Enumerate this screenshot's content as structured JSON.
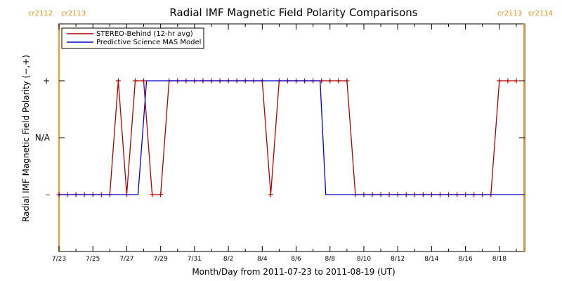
{
  "chart_data": {
    "type": "line",
    "title": "Radial IMF Magnetic Field Polarity Comparisons",
    "xlabel": "Month/Day from 2011-07-23 to 2011-08-19 (UT)",
    "ylabel": "Radial IMF Magnetic Field Polarity (−,+)",
    "x_tick_labels": [
      "7/23",
      "7/25",
      "7/27",
      "7/29",
      "7/31",
      "8/2",
      "8/4",
      "8/6",
      "8/8",
      "8/10",
      "8/12",
      "8/14",
      "8/16",
      "8/18"
    ],
    "y_tick_labels": [
      "–",
      "N/A",
      "+"
    ],
    "y_values_map": {
      "-": -1,
      "N/A": 0,
      "+": 1
    },
    "xlim": [
      "2011-07-23 00:00",
      "2011-08-19 12:00"
    ],
    "ylim": [
      -2,
      2
    ],
    "grid": false,
    "legend_position": "top-left",
    "carrington_labels_left": [
      "cr2112",
      "cr2113"
    ],
    "carrington_labels_right": [
      "cr2113",
      "cr2114"
    ],
    "carrington_boundary_times": [
      "2011-07-23 00:00",
      "2011-08-19 11:00"
    ],
    "series": [
      {
        "name": "STEREO-Behind (12-hr avg)",
        "color": "#b00000",
        "markers": "plus",
        "points": [
          [
            "2011-07-23 00:00",
            -1
          ],
          [
            "2011-07-23 12:00",
            -1
          ],
          [
            "2011-07-24 00:00",
            -1
          ],
          [
            "2011-07-24 12:00",
            -1
          ],
          [
            "2011-07-25 00:00",
            -1
          ],
          [
            "2011-07-25 12:00",
            -1
          ],
          [
            "2011-07-26 00:00",
            -1
          ],
          [
            "2011-07-26 12:00",
            1
          ],
          [
            "2011-07-27 00:00",
            -1
          ],
          [
            "2011-07-27 12:00",
            1
          ],
          [
            "2011-07-28 00:00",
            1
          ],
          [
            "2011-07-28 12:00",
            -1
          ],
          [
            "2011-07-29 00:00",
            -1
          ],
          [
            "2011-07-29 12:00",
            1
          ],
          [
            "2011-07-30 00:00",
            1
          ],
          [
            "2011-07-30 12:00",
            1
          ],
          [
            "2011-07-31 00:00",
            1
          ],
          [
            "2011-07-31 12:00",
            1
          ],
          [
            "2011-08-01 00:00",
            1
          ],
          [
            "2011-08-01 12:00",
            1
          ],
          [
            "2011-08-02 00:00",
            1
          ],
          [
            "2011-08-02 12:00",
            1
          ],
          [
            "2011-08-03 00:00",
            1
          ],
          [
            "2011-08-03 12:00",
            1
          ],
          [
            "2011-08-04 00:00",
            1
          ],
          [
            "2011-08-04 12:00",
            -1
          ],
          [
            "2011-08-05 00:00",
            1
          ],
          [
            "2011-08-05 12:00",
            1
          ],
          [
            "2011-08-06 00:00",
            1
          ],
          [
            "2011-08-06 12:00",
            1
          ],
          [
            "2011-08-07 00:00",
            1
          ],
          [
            "2011-08-07 12:00",
            1
          ],
          [
            "2011-08-08 00:00",
            1
          ],
          [
            "2011-08-08 12:00",
            1
          ],
          [
            "2011-08-09 00:00",
            1
          ],
          [
            "2011-08-09 12:00",
            -1
          ],
          [
            "2011-08-10 00:00",
            -1
          ],
          [
            "2011-08-10 12:00",
            -1
          ],
          [
            "2011-08-11 00:00",
            -1
          ],
          [
            "2011-08-11 12:00",
            -1
          ],
          [
            "2011-08-12 00:00",
            -1
          ],
          [
            "2011-08-12 12:00",
            -1
          ],
          [
            "2011-08-13 00:00",
            -1
          ],
          [
            "2011-08-13 12:00",
            -1
          ],
          [
            "2011-08-14 00:00",
            -1
          ],
          [
            "2011-08-14 12:00",
            -1
          ],
          [
            "2011-08-15 00:00",
            -1
          ],
          [
            "2011-08-15 12:00",
            -1
          ],
          [
            "2011-08-16 00:00",
            -1
          ],
          [
            "2011-08-16 12:00",
            -1
          ],
          [
            "2011-08-17 00:00",
            -1
          ],
          [
            "2011-08-17 12:00",
            -1
          ],
          [
            "2011-08-18 00:00",
            1
          ],
          [
            "2011-08-18 12:00",
            1
          ],
          [
            "2011-08-19 00:00",
            1
          ]
        ]
      },
      {
        "name": "Predictive Science MAS Model",
        "color": "#0000d0",
        "markers": "none",
        "points": [
          [
            "2011-07-23 00:00",
            -1
          ],
          [
            "2011-07-27 16:00",
            -1
          ],
          [
            "2011-07-28 04:00",
            1
          ],
          [
            "2011-08-07 10:00",
            1
          ],
          [
            "2011-08-07 18:00",
            -1
          ],
          [
            "2011-08-19 11:00",
            -1
          ]
        ]
      }
    ]
  }
}
